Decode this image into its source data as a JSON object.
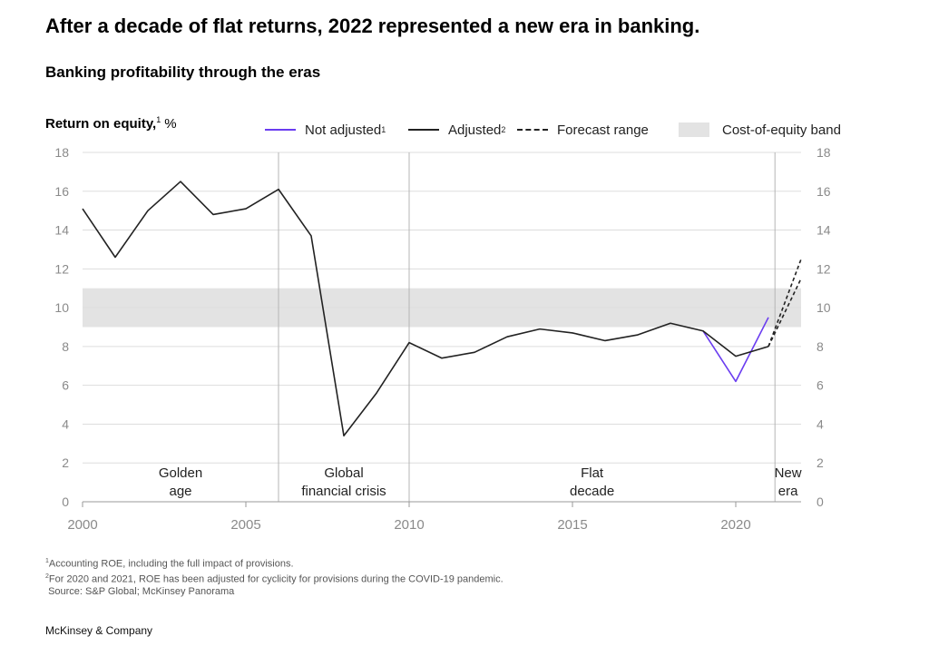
{
  "headline": "After a decade of flat returns, 2022 represented a new era in banking.",
  "subheadline": "Banking profitability through the eras",
  "footnotes": {
    "note1_mark": "1",
    "note1": "Accounting ROE, including the full impact of provisions.",
    "note2_mark": "2",
    "note2": "For 2020 and 2021, ROE has been adjusted for cyclicity for provisions during the COVID-19 pandemic.",
    "source": "Source: S&P Global; McKinsey Panorama"
  },
  "brand": "McKinsey & Company",
  "colors": {
    "adjusted": "#222222",
    "not_adjusted": "#6a3cf0",
    "band": "#e3e3e3",
    "grid": "#dddddd",
    "divider": "#b5b5b5"
  },
  "chart_data": {
    "type": "line",
    "ylabel": "Return on equity,",
    "ylabel_sup": "1",
    "ylabel_unit": "%",
    "ylim": [
      0,
      18
    ],
    "yticks": [
      0,
      2,
      4,
      6,
      8,
      10,
      12,
      14,
      16,
      18
    ],
    "xlim": [
      2000,
      2022
    ],
    "xticks": [
      2000,
      2005,
      2010,
      2015,
      2020
    ],
    "grid": true,
    "legend_position": "top",
    "legend": [
      {
        "label": "Not adjusted",
        "sup": "1",
        "style": "not_adjusted"
      },
      {
        "label": "Adjusted",
        "sup": "2",
        "style": "adjusted"
      },
      {
        "label": "Forecast range",
        "sup": "",
        "style": "forecast"
      },
      {
        "label": "Cost-of-equity band",
        "sup": "",
        "style": "band"
      }
    ],
    "band": [
      9,
      11
    ],
    "series": [
      {
        "name": "Adjusted",
        "x": [
          2000,
          2001,
          2002,
          2003,
          2004,
          2005,
          2006,
          2007,
          2008,
          2009,
          2010,
          2011,
          2012,
          2013,
          2014,
          2015,
          2016,
          2017,
          2018,
          2019,
          2020,
          2021
        ],
        "values": [
          15.1,
          12.6,
          15.0,
          16.5,
          14.8,
          15.1,
          16.1,
          13.7,
          3.4,
          5.6,
          8.2,
          7.4,
          7.7,
          8.5,
          8.9,
          8.7,
          8.3,
          8.6,
          9.2,
          8.8,
          7.5,
          8.0
        ]
      },
      {
        "name": "Not adjusted",
        "x": [
          2019,
          2020,
          2021
        ],
        "values": [
          8.8,
          6.2,
          9.5
        ]
      }
    ],
    "forecast": [
      {
        "x": [
          2021,
          2022
        ],
        "values": [
          8.0,
          12.5
        ]
      },
      {
        "x": [
          2021,
          2022
        ],
        "values": [
          8.0,
          11.5
        ]
      }
    ],
    "eras": [
      {
        "start": 2000,
        "end": 2006,
        "line1": "Golden",
        "line2": "age"
      },
      {
        "start": 2006,
        "end": 2010,
        "line1": "Global",
        "line2": "financial crisis"
      },
      {
        "start": 2010,
        "end": 2021.2,
        "line1": "Flat",
        "line2": "decade"
      },
      {
        "start": 2021.2,
        "end": 2022,
        "line1": "New",
        "line2": "era"
      }
    ],
    "dividers": [
      2006,
      2010,
      2021.2
    ]
  }
}
